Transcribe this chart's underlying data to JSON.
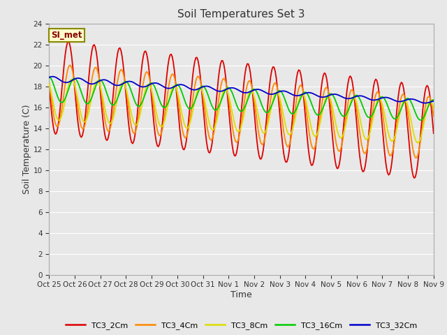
{
  "title": "Soil Temperatures Set 3",
  "xlabel": "Time",
  "ylabel": "Soil Temperature (C)",
  "fig_bg_color": "#e8e8e8",
  "plot_bg_color": "#e8e8e8",
  "ylim": [
    0,
    24
  ],
  "yticks": [
    0,
    2,
    4,
    6,
    8,
    10,
    12,
    14,
    16,
    18,
    20,
    22,
    24
  ],
  "xtick_labels": [
    "Oct 25",
    "Oct 26",
    "Oct 27",
    "Oct 28",
    "Oct 29",
    "Oct 30",
    "Oct 31",
    "Nov 1",
    "Nov 2",
    "Nov 3",
    "Nov 4",
    "Nov 5",
    "Nov 6",
    "Nov 7",
    "Nov 8",
    "Nov 9"
  ],
  "series_colors": [
    "#dd0000",
    "#ff8800",
    "#dddd00",
    "#00cc00",
    "#0000cc"
  ],
  "series_names": [
    "TC3_2Cm",
    "TC3_4Cm",
    "TC3_8Cm",
    "TC3_16Cm",
    "TC3_32Cm"
  ],
  "annotation_text": "SI_met",
  "annotation_bg": "#ffffcc",
  "annotation_border": "#888800",
  "grid_color": "#ffffff",
  "title_fontsize": 11,
  "tick_fontsize": 7.5,
  "ylabel_fontsize": 9,
  "xlabel_fontsize": 9
}
